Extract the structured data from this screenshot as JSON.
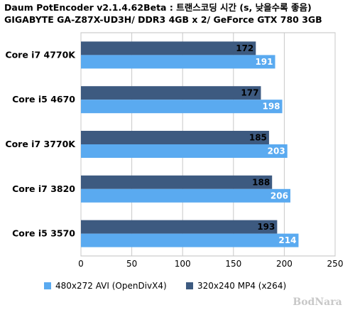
{
  "chart_data": {
    "type": "bar",
    "orientation": "horizontal",
    "title": "Daum PotEncoder v2.1.4.62Beta : 트랜스코딩 시간 (s, 낮을수록 좋음)",
    "subtitle": "GIGABYTE GA-Z87X-UD3H/ DDR3 4GB x 2/ GeForce GTX 780 3GB",
    "categories": [
      "Core i7 4770K",
      "Core i5 4670",
      "Core i7 3770K",
      "Core i7 3820",
      "Core i5 3570"
    ],
    "series": [
      {
        "name": "320x240 MP4 (x264)",
        "values": [
          172,
          177,
          185,
          188,
          193
        ],
        "color": "#3d5a80",
        "label_color": "#000000"
      },
      {
        "name": "480x272 AVI (OpenDivX4)",
        "values": [
          191,
          198,
          203,
          206,
          214
        ],
        "color": "#5aaaf0",
        "label_color": "#ffffff"
      }
    ],
    "legend_order": [
      1,
      0
    ],
    "xlim": [
      0,
      250
    ],
    "xticks": [
      0,
      50,
      100,
      150,
      200,
      250
    ],
    "grid": true,
    "legend_position": "bottom"
  },
  "watermark": "BodNara"
}
